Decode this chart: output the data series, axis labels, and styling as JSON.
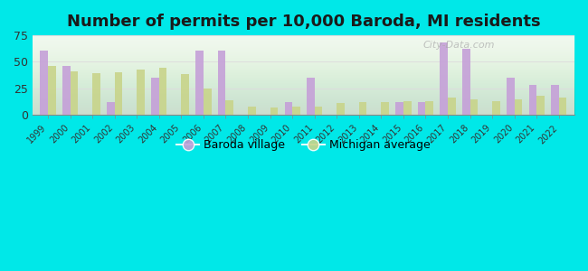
{
  "title": "Number of permits per 10,000 Baroda, MI residents",
  "years": [
    1999,
    2000,
    2001,
    2002,
    2003,
    2004,
    2005,
    2006,
    2007,
    2008,
    2009,
    2010,
    2011,
    2012,
    2013,
    2014,
    2015,
    2016,
    2017,
    2018,
    2019,
    2020,
    2021,
    2022
  ],
  "baroda": [
    60,
    46,
    0,
    12,
    0,
    35,
    0,
    60,
    60,
    0,
    0,
    12,
    35,
    0,
    0,
    0,
    12,
    12,
    68,
    62,
    0,
    35,
    28,
    28
  ],
  "michigan": [
    46,
    41,
    39,
    40,
    43,
    44,
    38,
    25,
    14,
    8,
    7,
    8,
    8,
    11,
    12,
    12,
    13,
    13,
    16,
    15,
    13,
    15,
    18,
    16
  ],
  "baroda_color": "#c5a0d8",
  "michigan_color": "#c8d48a",
  "background_color": "#00e8e8",
  "plot_bg": "#e8f5e2",
  "ylim": [
    0,
    75
  ],
  "yticks": [
    0,
    25,
    50,
    75
  ],
  "title_fontsize": 13,
  "watermark": "City-Data.com"
}
